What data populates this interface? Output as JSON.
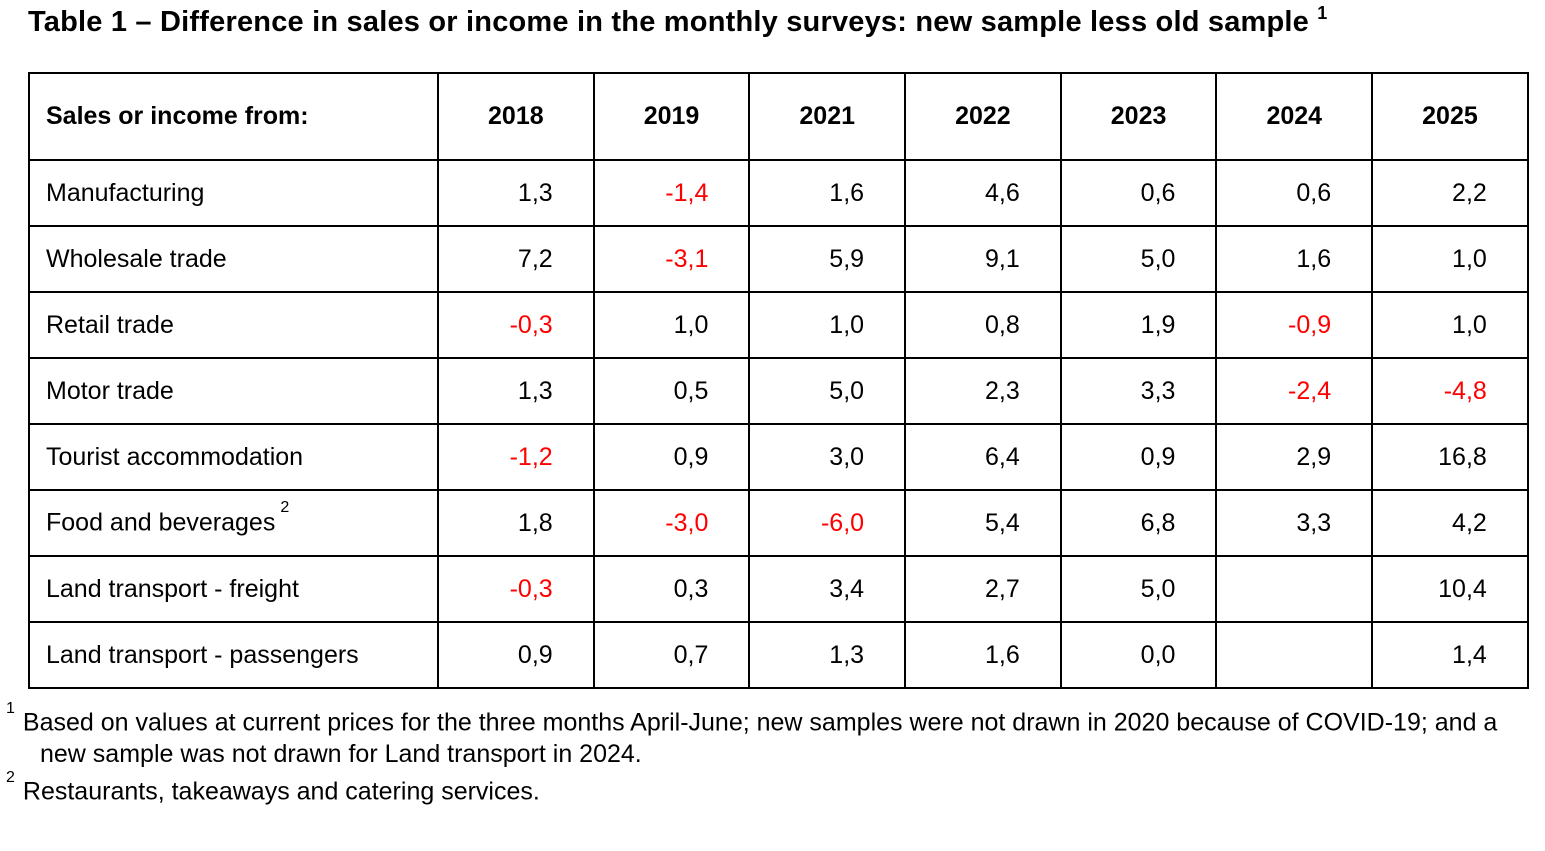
{
  "title": {
    "text": "Table 1 – Difference in sales or income in the monthly surveys: new sample less old sample",
    "footnote_ref": "1"
  },
  "table": {
    "header_label": "Sales or income from:",
    "years": [
      "2018",
      "2019",
      "2021",
      "2022",
      "2023",
      "2024",
      "2025"
    ],
    "negative_color": "#ff0000",
    "rows": [
      {
        "label": "Manufacturing",
        "note": "",
        "values": [
          "1,3",
          "-1,4",
          "1,6",
          "4,6",
          "0,6",
          "0,6",
          "2,2"
        ]
      },
      {
        "label": "Wholesale trade",
        "note": "",
        "values": [
          "7,2",
          "-3,1",
          "5,9",
          "9,1",
          "5,0",
          "1,6",
          "1,0"
        ]
      },
      {
        "label": "Retail trade",
        "note": "",
        "values": [
          "-0,3",
          "1,0",
          "1,0",
          "0,8",
          "1,9",
          "-0,9",
          "1,0"
        ]
      },
      {
        "label": "Motor trade",
        "note": "",
        "values": [
          "1,3",
          "0,5",
          "5,0",
          "2,3",
          "3,3",
          "-2,4",
          "-4,8"
        ]
      },
      {
        "label": "Tourist accommodation",
        "note": "",
        "values": [
          "-1,2",
          "0,9",
          "3,0",
          "6,4",
          "0,9",
          "2,9",
          "16,8"
        ]
      },
      {
        "label": "Food and beverages",
        "note": "2",
        "values": [
          "1,8",
          "-3,0",
          "-6,0",
          "5,4",
          "6,8",
          "3,3",
          "4,2"
        ]
      },
      {
        "label": "Land transport - freight",
        "note": "",
        "values": [
          "-0,3",
          "0,3",
          "3,4",
          "2,7",
          "5,0",
          "",
          "10,4"
        ]
      },
      {
        "label": "Land transport - passengers",
        "note": "",
        "values": [
          "0,9",
          "0,7",
          "1,3",
          "1,6",
          "0,0",
          "",
          "1,4"
        ]
      }
    ]
  },
  "footnotes": [
    {
      "ref": "1",
      "text": "Based on values at current prices for the three months April-June; new samples were not drawn in 2020 because of COVID-19; and a new sample was not drawn for Land transport in 2024."
    },
    {
      "ref": "2",
      "text": "Restaurants, takeaways and catering services."
    }
  ]
}
